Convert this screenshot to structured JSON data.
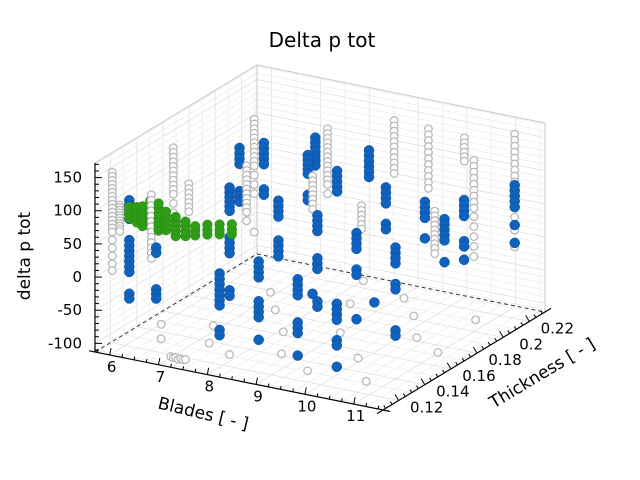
{
  "title": "Delta p tot",
  "chart_data": {
    "type": "scatter",
    "subtype": "scatter3d",
    "title": "Delta p tot",
    "xlabel": "Blades [ - ]",
    "ylabel": "Thickness [ - ]",
    "zlabel": "delta p tot",
    "xlim": [
      5.7,
      11.6
    ],
    "ylim": [
      0.108,
      0.232
    ],
    "zlim": [
      -113,
      172
    ],
    "xticks": [
      6,
      7,
      8,
      9,
      10,
      11
    ],
    "yticks": [
      0.12,
      0.14,
      0.16,
      0.18,
      0.2,
      0.22
    ],
    "zticks": [
      150,
      100,
      50,
      0,
      -50,
      -100
    ],
    "xtick_labels": [
      "6",
      "7",
      "8",
      "9",
      "10",
      "11"
    ],
    "ytick_labels": [
      "0.12",
      "0.14",
      "0.16",
      "0.18",
      "0.2",
      "0.22"
    ],
    "ztick_labels": [
      "150",
      "100",
      "50",
      "0",
      "-50",
      "-100"
    ],
    "minor_steps": {
      "x": 0.25,
      "y": 0.005,
      "z": 10,
      "floor_y": 0.01,
      "wall_x": 0.5,
      "wall_y": 0.01
    },
    "grid": true,
    "legend": false,
    "colors": {
      "gray": "#b9b9b9",
      "blue": "#0f62bd",
      "green": "#2f9e17"
    },
    "columns_format": "[blades, thickness, [delta_p_tot values]]",
    "series": [
      {
        "name": "gray-open-circles",
        "marker": "open-circle",
        "color": "#b9b9b9",
        "columns": [
          [
            6.0,
            0.11,
            [
              160,
              154,
              148,
              142,
              136,
              130,
              124,
              118,
              112,
              106,
              100,
              94,
              88,
              82,
              76,
              70,
              58,
              46,
              34,
              22,
              12
            ]
          ],
          [
            6.1,
            0.112,
            [
              110,
              106,
              102,
              98,
              94,
              90,
              86,
              82,
              78,
              74,
              70
            ]
          ],
          [
            6.45,
            0.14,
            [
              168,
              161,
              154,
              147,
              140,
              133,
              126,
              119,
              112,
              105,
              98,
              84,
              70,
              56,
              42
            ]
          ],
          [
            6.8,
            0.11,
            [
              138,
              130,
              122,
              114,
              106,
              98,
              90,
              82,
              74,
              66,
              58,
              50,
              42
            ]
          ],
          [
            6.5,
            0.2,
            [
              140,
              133,
              126,
              119,
              112,
              105,
              98,
              91,
              84,
              77,
              70,
              56,
              42,
              28,
              -30
            ]
          ],
          [
            7.3,
            0.12,
            [
              150,
              143,
              136,
              129,
              122,
              115,
              108
            ]
          ],
          [
            7.95,
            0.14,
            [
              163,
              156,
              149,
              142,
              135,
              128,
              121,
              114,
              107,
              100,
              93,
              80
            ]
          ],
          [
            8.0,
            0.2,
            [
              148,
              141,
              134,
              127,
              120,
              113,
              106,
              99,
              92,
              85,
              78,
              71,
              64,
              50
            ]
          ],
          [
            8.5,
            0.17,
            [
              120,
              113,
              106,
              99,
              92,
              85,
              78,
              70
            ]
          ],
          [
            9.1,
            0.21,
            [
              165,
              157,
              149,
              141,
              133,
              125,
              117,
              109,
              101,
              93,
              85
            ]
          ],
          [
            9.5,
            0.17,
            [
              90,
              83,
              76,
              69,
              62,
              55
            ]
          ],
          [
            9.8,
            0.21,
            [
              163,
              154,
              145,
              136,
              127,
              118,
              109,
              100,
              91,
              82,
              73
            ]
          ],
          [
            10.0,
            0.23,
            [
              128,
              121,
              114,
              107,
              100,
              93
            ]
          ],
          [
            11.0,
            0.2,
            [
              145,
              136,
              127,
              118,
              109,
              100,
              91,
              82,
              73,
              60,
              45,
              30,
              15,
              0
            ]
          ],
          [
            11.3,
            0.22,
            [
              165,
              156,
              147,
              138,
              129,
              120,
              111,
              102,
              93,
              84,
              40,
              20,
              -5
            ]
          ],
          [
            11.0,
            0.17,
            [
              104,
              97,
              90,
              83,
              76,
              69,
              62,
              55,
              48,
              40
            ]
          ],
          [
            6.2,
            0.14,
            [
              -102
            ]
          ],
          [
            6.6,
            0.125,
            [
              -100
            ]
          ],
          [
            7.0,
            0.15,
            [
              -104
            ]
          ],
          [
            7.45,
            0.13,
            [
              -100
            ]
          ],
          [
            7.6,
            0.175,
            [
              -101
            ]
          ],
          [
            8.0,
            0.125,
            [
              -103
            ]
          ],
          [
            8.3,
            0.155,
            [
              -100
            ]
          ],
          [
            8.8,
            0.135,
            [
              -102
            ]
          ],
          [
            9.2,
            0.165,
            [
              -100
            ]
          ],
          [
            9.6,
            0.125,
            [
              -104
            ]
          ],
          [
            10.1,
            0.145,
            [
              -101
            ]
          ],
          [
            10.5,
            0.175,
            [
              -100
            ]
          ],
          [
            10.8,
            0.125,
            [
              -102
            ]
          ],
          [
            9.9,
            0.195,
            [
              -100
            ]
          ],
          [
            10.9,
            0.205,
            [
              -103
            ]
          ],
          [
            11.2,
            0.165,
            [
              -100
            ]
          ],
          [
            8.6,
            0.195,
            [
              -101
            ]
          ],
          [
            7.1,
            0.19,
            [
              -100
            ]
          ],
          [
            9.3,
            0.21,
            [
              -100
            ]
          ],
          [
            8.2,
            0.22,
            [
              -102
            ]
          ],
          [
            7.2,
            0.11,
            [
              -100
            ]
          ],
          [
            7.25,
            0.11,
            [
              -101
            ]
          ],
          [
            7.3,
            0.11,
            [
              -100
            ]
          ],
          [
            7.35,
            0.11,
            [
              -102
            ]
          ],
          [
            7.4,
            0.11,
            [
              -100
            ]
          ],
          [
            7.45,
            0.11,
            [
              -101
            ]
          ],
          [
            7.5,
            0.11,
            [
              -100
            ]
          ]
        ]
      },
      {
        "name": "blue-filled-circles",
        "marker": "filled-circle",
        "color": "#0f62bd",
        "columns": [
          [
            6.35,
            0.11,
            [
              123,
              116,
              109,
              102,
              95,
              63,
              55,
              47,
              39,
              31,
              23,
              15,
              -18,
              -25
            ]
          ],
          [
            6.9,
            0.11,
            [
              60,
              52,
              -3,
              -10,
              -17
            ]
          ],
          [
            7.6,
            0.14,
            [
              125,
              118,
              111,
              104,
              97,
              90,
              50,
              42,
              34,
              26,
              -30,
              -38
            ]
          ],
          [
            7.0,
            0.17,
            [
              140,
              132,
              124,
              116,
              75,
              67,
              59
            ]
          ],
          [
            7.5,
            0.17,
            [
              155,
              147,
              139,
              131,
              123,
              85,
              77
            ]
          ],
          [
            8.2,
            0.11,
            [
              40,
              32,
              24,
              16,
              8,
              0,
              -8,
              -45,
              -53
            ]
          ],
          [
            8.6,
            0.14,
            [
              120,
              112,
              104,
              96,
              60,
              52,
              44,
              36
            ]
          ],
          [
            8.4,
            0.17,
            [
              150,
              143,
              136,
              129,
              122,
              90,
              82
            ]
          ],
          [
            7.75,
            0.2,
            [
              131,
              124,
              117,
              110,
              103,
              96,
              89
            ]
          ],
          [
            9.0,
            0.11,
            [
              70,
              62,
              54,
              46,
              10,
              2,
              -6,
              -14,
              -48
            ]
          ],
          [
            9.4,
            0.14,
            [
              110,
              102,
              94,
              86,
              45,
              37,
              29,
              -20,
              -28
            ]
          ],
          [
            9.0,
            0.17,
            [
              135,
              127,
              119,
              111,
              104
            ]
          ],
          [
            8.85,
            0.2,
            [
              128,
              120,
              112,
              104,
              96,
              88
            ]
          ],
          [
            9.8,
            0.11,
            [
              55,
              47,
              39,
              31,
              -10,
              -18,
              -26,
              -60
            ]
          ],
          [
            10.2,
            0.14,
            [
              95,
              87,
              79,
              71,
              40,
              32,
              -35
            ]
          ],
          [
            10.0,
            0.17,
            [
              125,
              117,
              109,
              101,
              70,
              62
            ]
          ],
          [
            10.6,
            0.11,
            [
              30,
              22,
              14,
              6,
              -25,
              -33,
              -65
            ]
          ],
          [
            11.0,
            0.14,
            [
              85,
              77,
              69,
              61,
              30,
              22,
              -40,
              -48
            ]
          ],
          [
            10.8,
            0.17,
            [
              115,
              107,
              99,
              91,
              60
            ]
          ],
          [
            10.8,
            0.2,
            [
              82,
              74,
              66,
              58,
              20,
              12,
              -8
            ]
          ],
          [
            11.3,
            0.22,
            [
              88,
              80,
              72,
              64,
              55,
              28,
              1
            ]
          ],
          [
            11.2,
            0.17,
            [
              95,
              87,
              79,
              71,
              63,
              30
            ]
          ],
          [
            9.3,
            0.14,
            [
              -10
            ]
          ],
          [
            10.3,
            0.15,
            [
              -20
            ]
          ]
        ]
      },
      {
        "name": "green-filled-circles",
        "marker": "filled-circle",
        "color": "#2f9e17",
        "columns": [
          [
            6.35,
            0.11,
            [
              96,
              101,
              105,
              109,
              113
            ]
          ],
          [
            6.5,
            0.11,
            [
              92,
              97,
              101,
              106,
              110,
              115
            ]
          ],
          [
            6.62,
            0.11,
            [
              88,
              95,
              100,
              106,
              112,
              118
            ]
          ],
          [
            6.78,
            0.11,
            [
              90,
              96,
              102,
              108,
              115,
              122,
              129
            ]
          ],
          [
            6.95,
            0.11,
            [
              86,
              93,
              99,
              105,
              112,
              120,
              127
            ]
          ],
          [
            7.1,
            0.11,
            [
              89,
              96,
              103,
              110,
              117
            ]
          ],
          [
            7.3,
            0.11,
            [
              83,
              91,
              98,
              105,
              112
            ]
          ],
          [
            7.5,
            0.11,
            [
              86,
              93,
              101,
              108
            ]
          ],
          [
            7.7,
            0.11,
            [
              90,
              97,
              104
            ]
          ],
          [
            7.95,
            0.11,
            [
              95,
              102,
              110
            ]
          ],
          [
            8.2,
            0.11,
            [
              99,
              106,
              114
            ]
          ],
          [
            8.45,
            0.11,
            [
              103,
              110,
              118
            ]
          ]
        ]
      }
    ]
  }
}
